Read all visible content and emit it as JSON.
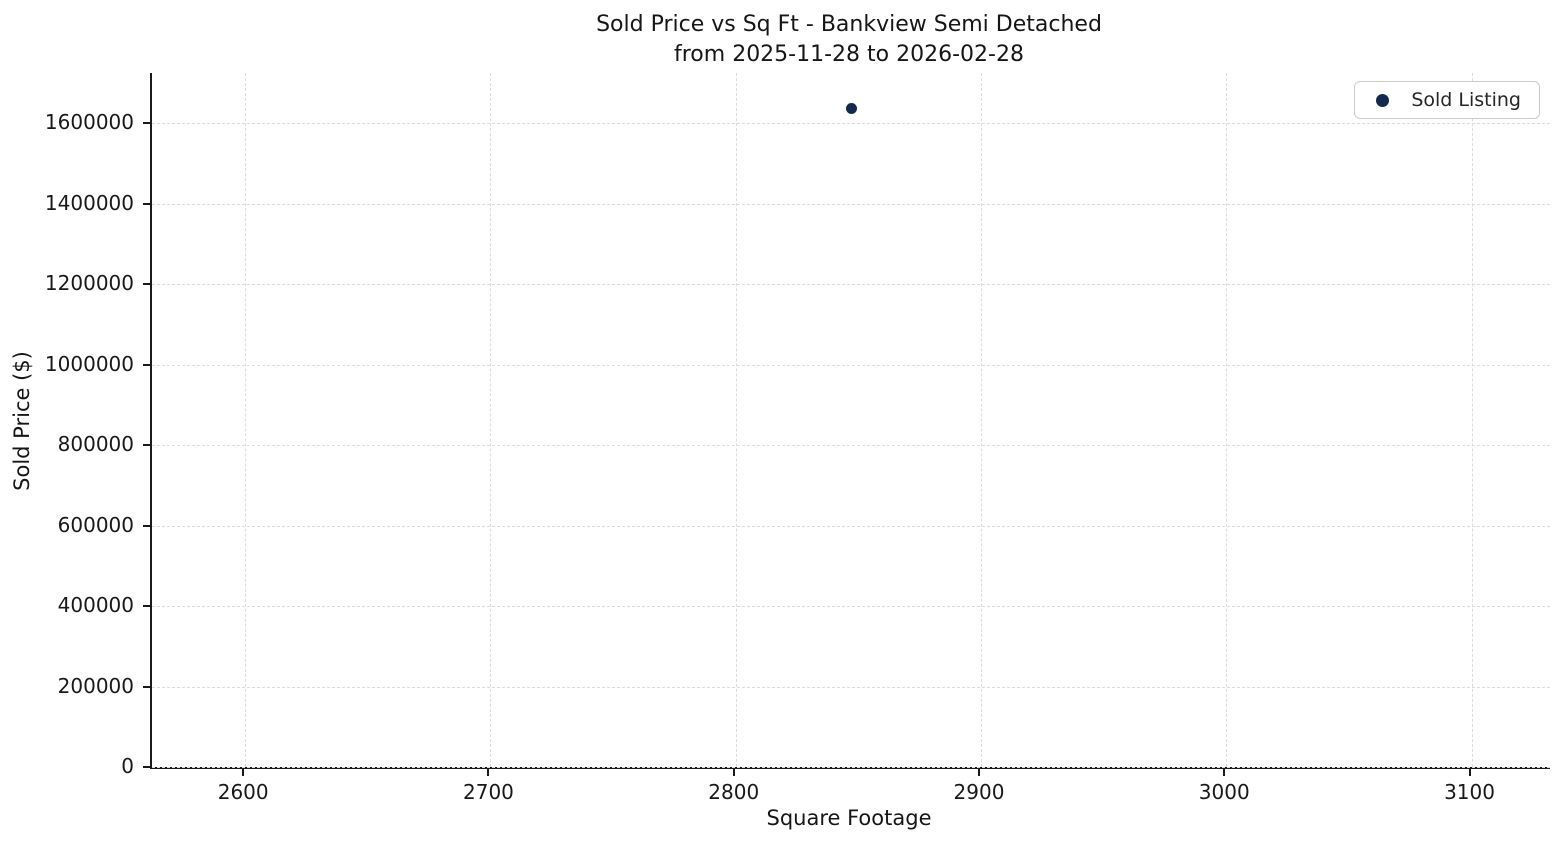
{
  "chart_data": {
    "type": "scatter",
    "title": "Sold Price vs Sq Ft - Bankview Semi Detached",
    "subtitle": "from 2025-11-28 to 2026-02-28",
    "xlabel": "Square Footage",
    "ylabel": "Sold Price ($)",
    "xlim": [
      2562,
      3132
    ],
    "ylim": [
      0,
      1725000
    ],
    "x_ticks": [
      2600,
      2700,
      2800,
      2900,
      3000,
      3100
    ],
    "y_ticks": [
      0,
      200000,
      400000,
      600000,
      800000,
      1000000,
      1200000,
      1400000,
      1600000
    ],
    "grid": true,
    "grid_style": "dashed",
    "legend": {
      "position": "upper right",
      "entries": [
        {
          "label": "Sold Listing",
          "marker_color": "#13294e"
        }
      ]
    },
    "series": [
      {
        "name": "Sold Listing",
        "marker": "circle",
        "color": "#13294e",
        "points": [
          {
            "x": 2847,
            "y": 1638000
          }
        ]
      }
    ]
  },
  "colors": {
    "background": "#ffffff",
    "spine": "#1a1a1a",
    "grid": "#dcdcdc",
    "text": "#191919",
    "marker": "#13294e",
    "legend_border": "#cccccc"
  }
}
